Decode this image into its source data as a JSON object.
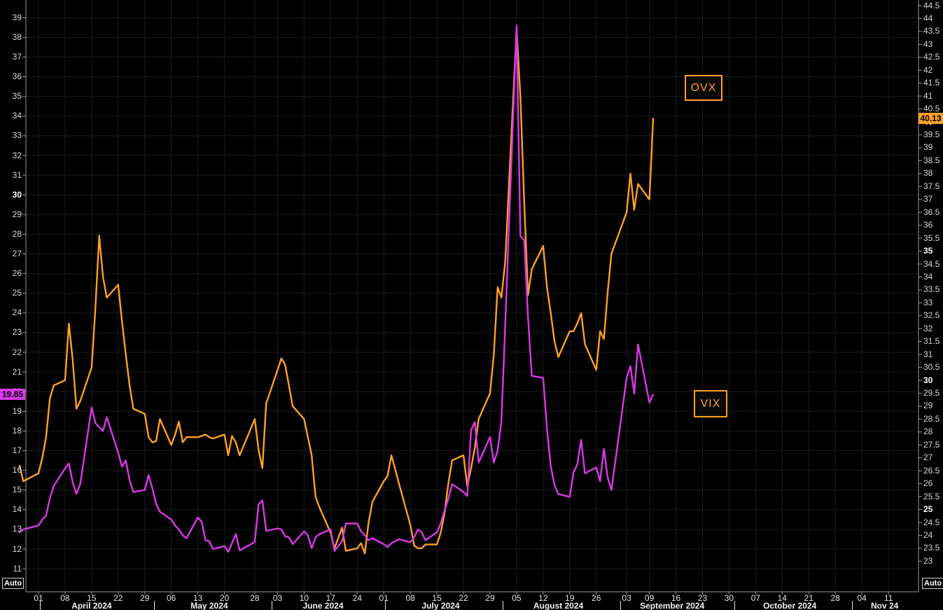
{
  "chart_data": {
    "type": "line",
    "title": "",
    "x": [
      "2024-03-27",
      "2024-03-28",
      "2024-04-01",
      "2024-04-02",
      "2024-04-03",
      "2024-04-04",
      "2024-04-05",
      "2024-04-08",
      "2024-04-09",
      "2024-04-10",
      "2024-04-11",
      "2024-04-12",
      "2024-04-15",
      "2024-04-16",
      "2024-04-17",
      "2024-04-18",
      "2024-04-19",
      "2024-04-22",
      "2024-04-23",
      "2024-04-24",
      "2024-04-25",
      "2024-04-26",
      "2024-04-29",
      "2024-04-30",
      "2024-05-01",
      "2024-05-02",
      "2024-05-03",
      "2024-05-06",
      "2024-05-07",
      "2024-05-08",
      "2024-05-09",
      "2024-05-10",
      "2024-05-13",
      "2024-05-14",
      "2024-05-15",
      "2024-05-16",
      "2024-05-17",
      "2024-05-20",
      "2024-05-21",
      "2024-05-22",
      "2024-05-23",
      "2024-05-24",
      "2024-05-28",
      "2024-05-29",
      "2024-05-30",
      "2024-05-31",
      "2024-06-03",
      "2024-06-04",
      "2024-06-05",
      "2024-06-06",
      "2024-06-07",
      "2024-06-10",
      "2024-06-11",
      "2024-06-12",
      "2024-06-13",
      "2024-06-14",
      "2024-06-17",
      "2024-06-18",
      "2024-06-20",
      "2024-06-21",
      "2024-06-24",
      "2024-06-25",
      "2024-06-26",
      "2024-06-27",
      "2024-06-28",
      "2024-07-01",
      "2024-07-02",
      "2024-07-03",
      "2024-07-05",
      "2024-07-08",
      "2024-07-09",
      "2024-07-10",
      "2024-07-11",
      "2024-07-12",
      "2024-07-15",
      "2024-07-16",
      "2024-07-17",
      "2024-07-18",
      "2024-07-19",
      "2024-07-22",
      "2024-07-23",
      "2024-07-24",
      "2024-07-25",
      "2024-07-26",
      "2024-07-29",
      "2024-07-30",
      "2024-07-31",
      "2024-08-01",
      "2024-08-02",
      "2024-08-05",
      "2024-08-06",
      "2024-08-07",
      "2024-08-08",
      "2024-08-09",
      "2024-08-12",
      "2024-08-13",
      "2024-08-14",
      "2024-08-15",
      "2024-08-16",
      "2024-08-19",
      "2024-08-20",
      "2024-08-21",
      "2024-08-22",
      "2024-08-23",
      "2024-08-26",
      "2024-08-27",
      "2024-08-28",
      "2024-08-29",
      "2024-08-30",
      "2024-09-03",
      "2024-09-04",
      "2024-09-05",
      "2024-09-06",
      "2024-09-09",
      "2024-09-10"
    ],
    "series": [
      {
        "name": "OVX",
        "axis": "right",
        "color": "#FFA028",
        "last_value": "40.13",
        "values": [
          26.7,
          26.1,
          26.4,
          27.0,
          27.8,
          29.3,
          29.8,
          30.0,
          32.2,
          30.8,
          28.9,
          29.2,
          30.5,
          32.8,
          35.6,
          34.0,
          33.2,
          33.7,
          32.3,
          31.0,
          29.8,
          28.9,
          28.7,
          27.8,
          27.6,
          27.65,
          28.5,
          27.5,
          27.9,
          28.4,
          27.6,
          27.8,
          27.8,
          27.85,
          27.9,
          27.8,
          27.75,
          27.9,
          27.1,
          27.85,
          27.6,
          27.1,
          28.5,
          27.3,
          26.6,
          29.1,
          30.4,
          30.85,
          30.6,
          29.8,
          29.0,
          28.5,
          27.8,
          27.1,
          25.5,
          25.1,
          24.1,
          23.5,
          24.3,
          23.4,
          23.5,
          23.7,
          23.3,
          24.5,
          25.3,
          26.1,
          26.3,
          27.1,
          26.0,
          24.4,
          23.6,
          23.5,
          23.5,
          23.65,
          23.65,
          24.1,
          24.85,
          26.0,
          26.9,
          27.1,
          25.9,
          26.6,
          27.4,
          28.5,
          29.5,
          31.0,
          33.6,
          33.2,
          34.6,
          43.6,
          41.0,
          36.9,
          33.3,
          34.3,
          35.2,
          33.6,
          32.6,
          31.5,
          30.9,
          31.9,
          31.9,
          32.2,
          32.6,
          31.4,
          30.4,
          31.9,
          31.6,
          33.4,
          34.9,
          36.5,
          38.0,
          36.6,
          37.6,
          37.0,
          40.13
        ]
      },
      {
        "name": "VIX",
        "axis": "left",
        "color": "#D939E8",
        "last_value": "19.85",
        "values": [
          12.85,
          13.0,
          13.2,
          13.5,
          13.7,
          14.6,
          15.2,
          16.1,
          16.35,
          15.4,
          14.8,
          15.3,
          19.2,
          18.4,
          18.2,
          18.0,
          18.7,
          16.9,
          16.2,
          16.5,
          15.5,
          14.9,
          15.0,
          15.76,
          15.1,
          14.3,
          13.9,
          13.5,
          13.2,
          13.0,
          12.7,
          12.55,
          13.6,
          13.4,
          12.45,
          12.4,
          12.0,
          12.15,
          11.86,
          12.3,
          12.77,
          11.93,
          12.36,
          14.28,
          14.47,
          12.92,
          13.05,
          13.0,
          12.65,
          12.6,
          12.25,
          12.9,
          12.7,
          12.05,
          12.6,
          12.75,
          13.0,
          11.9,
          12.4,
          13.3,
          13.3,
          12.9,
          12.7,
          12.45,
          12.55,
          12.25,
          12.1,
          12.3,
          12.5,
          12.35,
          12.6,
          13.0,
          12.85,
          12.45,
          12.85,
          13.3,
          13.95,
          14.55,
          15.3,
          14.9,
          14.7,
          18.05,
          18.45,
          16.4,
          17.7,
          16.4,
          17.0,
          18.5,
          23.4,
          38.6,
          27.9,
          27.7,
          23.8,
          20.8,
          20.7,
          18.1,
          16.2,
          15.25,
          14.8,
          14.65,
          15.9,
          16.3,
          17.55,
          15.85,
          16.15,
          15.45,
          17.1,
          15.65,
          15.0,
          20.7,
          21.3,
          19.9,
          22.4,
          19.45,
          19.85
        ]
      }
    ],
    "left_axis": {
      "ticks": [
        39,
        38,
        37,
        36,
        35,
        34,
        33,
        32,
        31,
        30,
        29,
        28,
        27,
        26,
        25,
        24,
        23,
        22,
        21,
        20,
        19,
        18,
        17,
        16,
        15,
        14,
        13,
        12,
        11
      ],
      "bold": [
        30,
        20
      ],
      "range": [
        9.7,
        39.8
      ]
    },
    "right_axis": {
      "ticks": [
        44.5,
        44,
        43.5,
        43,
        42.5,
        42,
        41.5,
        41,
        40.5,
        40,
        39.5,
        39,
        38.5,
        38,
        37.5,
        37,
        36.5,
        36,
        35.5,
        35,
        34.5,
        34,
        33.5,
        33,
        32.5,
        32,
        31.5,
        31,
        30.5,
        30,
        29.5,
        29,
        28.5,
        28,
        27.5,
        27,
        26.5,
        26,
        25.5,
        25,
        24.5,
        24,
        23.5,
        23
      ],
      "bold": [
        40,
        35,
        30,
        25
      ],
      "range": [
        21.6,
        44.6
      ]
    },
    "x_axis": {
      "week_ticks": [
        {
          "label": "01",
          "date": "2024-04-01"
        },
        {
          "label": "08",
          "date": "2024-04-08"
        },
        {
          "label": "15",
          "date": "2024-04-15"
        },
        {
          "label": "22",
          "date": "2024-04-22"
        },
        {
          "label": "29",
          "date": "2024-04-29"
        },
        {
          "label": "06",
          "date": "2024-05-06"
        },
        {
          "label": "13",
          "date": "2024-05-13"
        },
        {
          "label": "20",
          "date": "2024-05-20"
        },
        {
          "label": "28",
          "date": "2024-05-28"
        },
        {
          "label": "03",
          "date": "2024-06-03"
        },
        {
          "label": "10",
          "date": "2024-06-10"
        },
        {
          "label": "17",
          "date": "2024-06-17"
        },
        {
          "label": "24",
          "date": "2024-06-24"
        },
        {
          "label": "01",
          "date": "2024-07-01"
        },
        {
          "label": "08",
          "date": "2024-07-08"
        },
        {
          "label": "15",
          "date": "2024-07-15"
        },
        {
          "label": "22",
          "date": "2024-07-22"
        },
        {
          "label": "29",
          "date": "2024-07-29"
        },
        {
          "label": "05",
          "date": "2024-08-05"
        },
        {
          "label": "12",
          "date": "2024-08-12"
        },
        {
          "label": "19",
          "date": "2024-08-19"
        },
        {
          "label": "26",
          "date": "2024-08-26"
        },
        {
          "label": "03",
          "date": "2024-09-03"
        },
        {
          "label": "09",
          "date": "2024-09-09"
        },
        {
          "label": "16",
          "date": "2024-09-16"
        },
        {
          "label": "23",
          "date": "2024-09-23"
        },
        {
          "label": "30",
          "date": "2024-09-30"
        },
        {
          "label": "07",
          "date": "2024-10-07"
        },
        {
          "label": "14",
          "date": "2024-10-14"
        },
        {
          "label": "21",
          "date": "2024-10-21"
        },
        {
          "label": "28",
          "date": "2024-10-28"
        },
        {
          "label": "04",
          "date": "2024-11-04"
        },
        {
          "label": "11",
          "date": "2024-11-11"
        }
      ],
      "months": [
        {
          "label": "April 2024",
          "start": "2024-04-01",
          "center": "2024-04-15"
        },
        {
          "label": "May 2024",
          "start": "2024-05-01",
          "center": "2024-05-16"
        },
        {
          "label": "June 2024",
          "start": "2024-06-01",
          "center": "2024-06-15"
        },
        {
          "label": "July 2024",
          "start": "2024-07-01",
          "center": "2024-07-16"
        },
        {
          "label": "August 2024",
          "start": "2024-08-01",
          "center": "2024-08-16"
        },
        {
          "label": "September 2024",
          "start": "2024-09-01",
          "center": "2024-09-15"
        },
        {
          "label": "October 2024",
          "start": "2024-10-01",
          "center": "2024-10-16"
        },
        {
          "label": "Nov 24",
          "start": "2024-11-01",
          "center": "2024-11-10"
        }
      ]
    },
    "legend_position": "floating-annotation-boxes",
    "grid": true
  },
  "badges": {
    "vix": "19.85",
    "ovx": "40.13"
  },
  "controls": {
    "auto_left": "Auto",
    "auto_right": "Auto"
  },
  "colors": {
    "background": "#000000",
    "grid": "#1d1d1d",
    "axis": "#9a9a9a",
    "tick_text": "#d9d9d9",
    "ovx": "#FFA028",
    "vix": "#D939E8",
    "badge_text": "#000000"
  }
}
